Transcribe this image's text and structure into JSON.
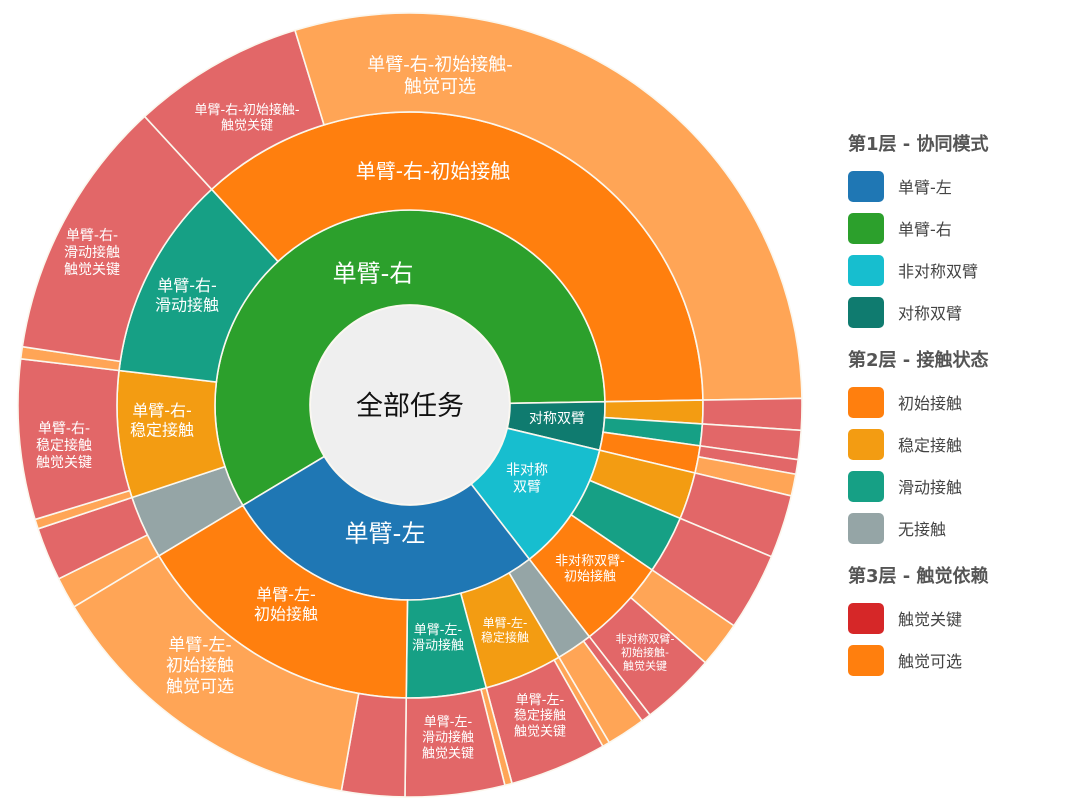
{
  "chart_data": {
    "type": "sunburst",
    "value_unit": "share of all tasks (%)",
    "root": {
      "label": "全部任务"
    },
    "colors": {
      "level1": {
        "单臂-左": "#1f77b4",
        "单臂-右": "#2ca02c",
        "非对称双臂": "#17becf",
        "对称双臂": "#0f7b6f"
      },
      "level2": {
        "初始接触": "#ff7f0e",
        "稳定接触": "#f39c12",
        "滑动接触": "#16a085",
        "无接触": "#95a5a6"
      },
      "level3": {
        "触觉关键": "#d62728",
        "触觉可选": "#ff7f0e"
      },
      "center": "#efefef"
    },
    "nodes": [
      {
        "name": "单臂-右",
        "label_lines": [
          "单臂-右"
        ],
        "children": [
          {
            "name": "无接触",
            "children": [
              {
                "name": "触觉可选",
                "value": 1.3
              },
              {
                "name": "触觉关键",
                "value": 2.2
              }
            ]
          },
          {
            "name": "稳定接触",
            "label_lines": [
              "单臂-右-",
              "稳定接触"
            ],
            "children": [
              {
                "name": "触觉可选",
                "value": 0.4
              },
              {
                "name": "触觉关键",
                "value": 6.6,
                "label_lines": [
                  "单臂-右-",
                  "稳定接触",
                  "触觉关键"
                ]
              }
            ]
          },
          {
            "name": "滑动接触",
            "label_lines": [
              "单臂-右-",
              "滑动接触"
            ],
            "children": [
              {
                "name": "触觉可选",
                "value": 0.5
              },
              {
                "name": "触觉关键",
                "value": 10.8,
                "label_lines": [
                  "单臂-右-",
                  "滑动接触",
                  "触觉关键"
                ]
              }
            ]
          },
          {
            "name": "初始接触",
            "label_lines": [
              "单臂-右-初始接触"
            ],
            "children": [
              {
                "name": "触觉关键",
                "value": 7.1,
                "label_lines": [
                  "单臂-右-初始接触-",
                  "触觉关键"
                ]
              },
              {
                "name": "触觉可选",
                "value": 29.5,
                "label_lines": [
                  "单臂-右-初始接触-",
                  "触觉可选"
                ]
              }
            ]
          }
        ]
      },
      {
        "name": "对称双臂",
        "label_lines": [
          "对称双臂"
        ],
        "children": [
          {
            "name": "稳定接触",
            "children": [
              {
                "name": "触觉关键",
                "value": 1.3
              }
            ]
          },
          {
            "name": "滑动接触",
            "children": [
              {
                "name": "触觉关键",
                "value": 1.2
              }
            ]
          },
          {
            "name": "初始接触",
            "children": [
              {
                "name": "触觉关键",
                "value": 0.6
              },
              {
                "name": "触觉可选",
                "value": 0.9
              }
            ]
          }
        ]
      },
      {
        "name": "非对称双臂",
        "label_lines": [
          "非对称",
          "双臂"
        ],
        "children": [
          {
            "name": "稳定接触",
            "children": [
              {
                "name": "触觉关键",
                "value": 2.6
              }
            ]
          },
          {
            "name": "滑动接触",
            "children": [
              {
                "name": "触觉关键",
                "value": 3.2
              }
            ]
          },
          {
            "name": "初始接触",
            "label_lines": [
              "非对称双臂-",
              "初始接触"
            ],
            "children": [
              {
                "name": "触觉可选",
                "value": 1.9
              },
              {
                "name": "触觉关键",
                "value": 3.1,
                "label_lines": [
                  "非对称双臂-",
                  "初始接触-",
                  "触觉关键"
                ]
              }
            ]
          }
        ]
      },
      {
        "name": "单臂-左",
        "label_lines": [
          "单臂-左"
        ],
        "children": [
          {
            "name": "无接触",
            "children": [
              {
                "name": "触觉关键",
                "value": 0.4
              },
              {
                "name": "触觉可选",
                "value": 1.6
              }
            ]
          },
          {
            "name": "稳定接触",
            "label_lines": [
              "单臂-左-",
              "稳定接触"
            ],
            "children": [
              {
                "name": "触觉可选",
                "value": 0.3
              },
              {
                "name": "触觉关键",
                "value": 4.0,
                "label_lines": [
                  "单臂-左-",
                  "稳定接触",
                  "触觉关键"
                ]
              }
            ]
          },
          {
            "name": "滑动接触",
            "label_lines": [
              "单臂-左-",
              "滑动接触"
            ],
            "children": [
              {
                "name": "触觉可选",
                "value": 0.3
              },
              {
                "name": "触觉关键",
                "value": 4.1,
                "label_lines": [
                  "单臂-左-",
                  "滑动接触",
                  "触觉关键"
                ]
              }
            ]
          },
          {
            "name": "初始接触",
            "label_lines": [
              "单臂-左-",
              "初始接触"
            ],
            "children": [
              {
                "name": "触觉关键",
                "value": 2.6
              },
              {
                "name": "触觉可选",
                "value": 13.6,
                "label_lines": [
                  "单臂-左-",
                  "初始接触",
                  "触觉可选"
                ]
              }
            ]
          }
        ]
      }
    ]
  },
  "legend": {
    "groups": [
      {
        "title": "第1层 - 协同模式",
        "items": [
          {
            "label": "单臂-左",
            "color": "#1f77b4"
          },
          {
            "label": "单臂-右",
            "color": "#2ca02c"
          },
          {
            "label": "非对称双臂",
            "color": "#17becf"
          },
          {
            "label": "对称双臂",
            "color": "#0f7b6f"
          }
        ]
      },
      {
        "title": "第2层 - 接触状态",
        "items": [
          {
            "label": "初始接触",
            "color": "#ff7f0e"
          },
          {
            "label": "稳定接触",
            "color": "#f39c12"
          },
          {
            "label": "滑动接触",
            "color": "#16a085"
          },
          {
            "label": "无接触",
            "color": "#95a5a6"
          }
        ]
      },
      {
        "title": "第3层 - 触觉依赖",
        "items": [
          {
            "label": "触觉关键",
            "color": "#d62728"
          },
          {
            "label": "触觉可选",
            "color": "#ff7f0e"
          }
        ]
      }
    ]
  }
}
